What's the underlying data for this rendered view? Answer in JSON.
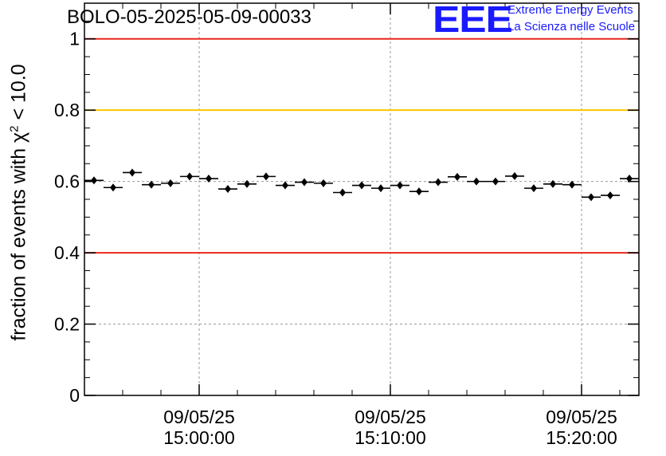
{
  "header": {
    "title": "BOLO-05-2025-05-09-00033",
    "logo_text": "EEE",
    "org_line1": "Extreme Energy Events",
    "org_line2": "La Scienza nelle Scuole"
  },
  "chart_data": {
    "type": "scatter",
    "title": "BOLO-05-2025-05-09-00033",
    "ylabel_prefix": "fraction of events with χ",
    "ylabel_exp": "2",
    "ylabel_suffix": " < 10.0",
    "ylim": [
      0,
      1.1
    ],
    "yticks": [
      0,
      0.2,
      0.4,
      0.6,
      0.8,
      1
    ],
    "ytick_labels": [
      "0",
      "0.2",
      "0.4",
      "0.6",
      "0.8",
      "1"
    ],
    "xlim_minutes_after_1454": [
      0,
      29
    ],
    "xticks": [
      {
        "minutes_after_1454": 6,
        "date": "09/05/25",
        "time": "15:00:00"
      },
      {
        "minutes_after_1454": 16,
        "date": "09/05/25",
        "time": "15:10:00"
      },
      {
        "minutes_after_1454": 26,
        "date": "09/05/25",
        "time": "15:20:00"
      }
    ],
    "grid": true,
    "reference_lines": [
      {
        "y": 1.0,
        "color": "#e8281e"
      },
      {
        "y": 0.8,
        "color": "#ffc400"
      },
      {
        "y": 0.4,
        "color": "#e8281e"
      }
    ],
    "series": [
      {
        "bin_width_minutes": 1,
        "x_minutes_after_1454": [
          0.5,
          1.5,
          2.5,
          3.5,
          4.5,
          5.5,
          6.5,
          7.5,
          8.5,
          9.5,
          10.5,
          11.5,
          12.5,
          13.5,
          14.5,
          15.5,
          16.5,
          17.5,
          18.5,
          19.5,
          20.5,
          21.5,
          22.5,
          23.5,
          24.5,
          25.5,
          26.5,
          27.5,
          28.5
        ],
        "y": [
          0.603,
          0.583,
          0.625,
          0.591,
          0.595,
          0.614,
          0.608,
          0.579,
          0.593,
          0.614,
          0.589,
          0.598,
          0.595,
          0.569,
          0.589,
          0.581,
          0.589,
          0.572,
          0.598,
          0.613,
          0.6,
          0.6,
          0.615,
          0.581,
          0.593,
          0.591,
          0.556,
          0.561,
          0.608
        ]
      }
    ]
  }
}
